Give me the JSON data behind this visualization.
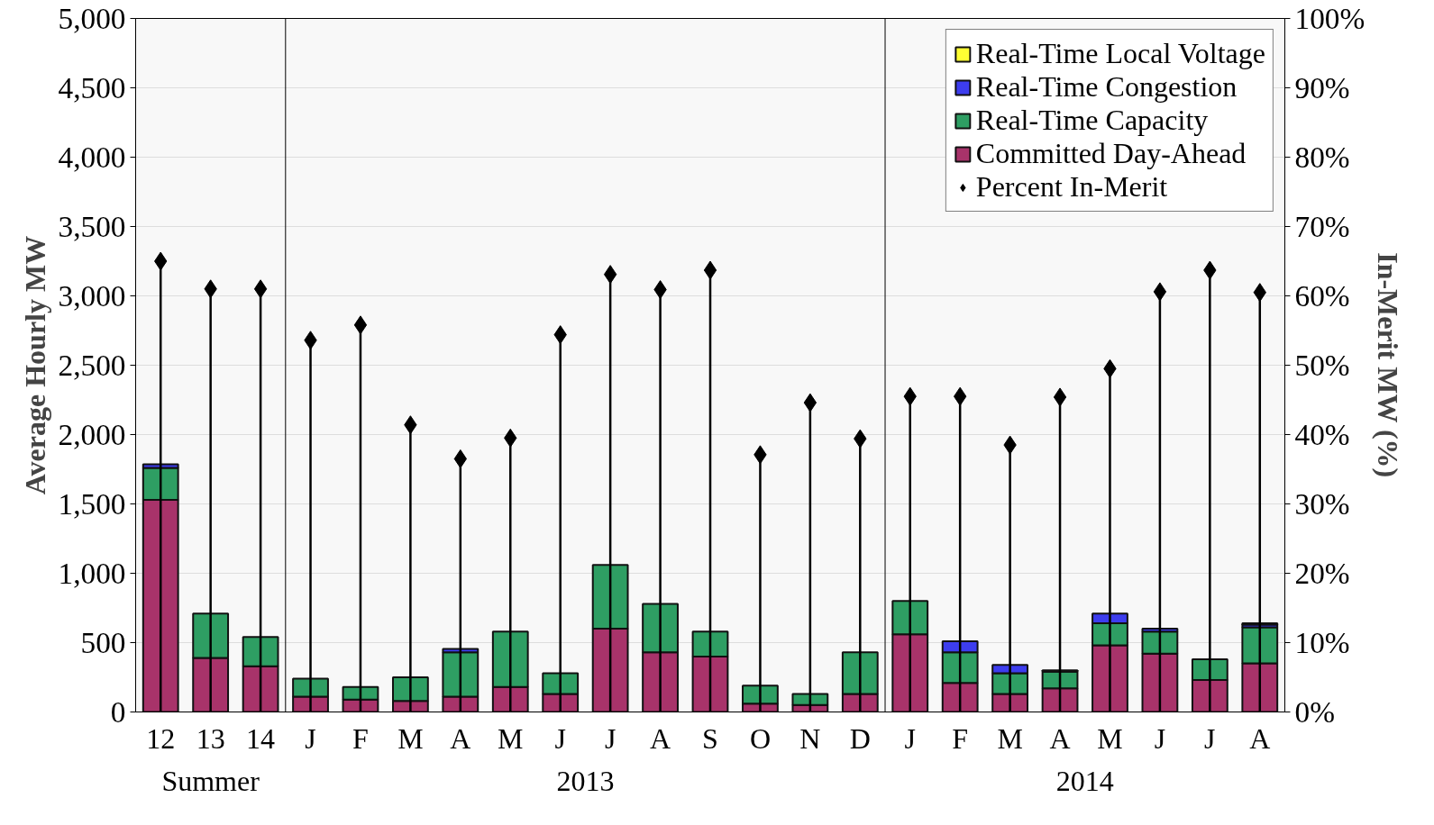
{
  "chart_data": {
    "type": "bar",
    "stacked": true,
    "categories": [
      "12",
      "13",
      "14",
      "J",
      "F",
      "M",
      "A",
      "M",
      "J",
      "J",
      "A",
      "S",
      "O",
      "N",
      "D",
      "J",
      "F",
      "M",
      "A",
      "M",
      "J",
      "J",
      "A"
    ],
    "annotations": [
      "Summer",
      "2013",
      "2014"
    ],
    "ylabel": "Average Hourly MW",
    "y2label": "In-Merit MW (%)",
    "ylim": [
      0,
      5000
    ],
    "yticks": [
      {
        "value": 0,
        "label": "0"
      },
      {
        "value": 500,
        "label": "500"
      },
      {
        "value": 1000,
        "label": "1,000"
      },
      {
        "value": 1500,
        "label": "1,500"
      },
      {
        "value": 2000,
        "label": "2,000"
      },
      {
        "value": 2500,
        "label": "2,500"
      },
      {
        "value": 3000,
        "label": "3,000"
      },
      {
        "value": 3500,
        "label": "3,500"
      },
      {
        "value": 4000,
        "label": "4,000"
      },
      {
        "value": 4500,
        "label": "4,500"
      },
      {
        "value": 5000,
        "label": "5,000"
      }
    ],
    "y2lim": [
      0,
      100
    ],
    "y2ticks": [
      {
        "value": 0,
        "label": "0%"
      },
      {
        "value": 10,
        "label": "10%"
      },
      {
        "value": 20,
        "label": "20%"
      },
      {
        "value": 30,
        "label": "30%"
      },
      {
        "value": 40,
        "label": "40%"
      },
      {
        "value": 50,
        "label": "50%"
      },
      {
        "value": 60,
        "label": "60%"
      },
      {
        "value": 70,
        "label": "70%"
      },
      {
        "value": 80,
        "label": "80%"
      },
      {
        "value": 90,
        "label": "90%"
      },
      {
        "value": 100,
        "label": "100%"
      }
    ],
    "grid": "y",
    "legend": "top right",
    "series": [
      {
        "name": "Committed Day-Ahead",
        "color": "#a8336a",
        "values": [
          1530,
          390,
          330,
          110,
          90,
          80,
          110,
          180,
          130,
          600,
          430,
          400,
          60,
          50,
          130,
          560,
          210,
          130,
          170,
          480,
          420,
          230,
          350
        ]
      },
      {
        "name": "Real-Time Capacity",
        "color": "#2e9e63",
        "values": [
          230,
          320,
          210,
          130,
          90,
          170,
          320,
          400,
          150,
          460,
          350,
          180,
          130,
          80,
          300,
          240,
          220,
          150,
          120,
          160,
          160,
          150,
          260
        ]
      },
      {
        "name": "Real-Time Congestion",
        "color": "#3d3dee",
        "values": [
          25,
          0,
          0,
          0,
          0,
          0,
          25,
          0,
          0,
          0,
          0,
          0,
          0,
          0,
          0,
          0,
          80,
          60,
          10,
          70,
          20,
          0,
          20
        ]
      },
      {
        "name": "Real-Time Local Voltage",
        "color": "#ffff33",
        "values": [
          0,
          0,
          0,
          0,
          0,
          0,
          0,
          0,
          0,
          0,
          0,
          0,
          0,
          0,
          0,
          0,
          0,
          0,
          0,
          0,
          0,
          0,
          10
        ]
      },
      {
        "name": "Percent In-Merit",
        "type": "lollipop",
        "axis": "y2",
        "color": "#000000",
        "marker": "diamond",
        "values": [
          65,
          61,
          61,
          53.6,
          55.8,
          41.4,
          36.5,
          39.5,
          54.4,
          63.1,
          60.9,
          63.7,
          37.1,
          44.6,
          39.4,
          45.5,
          45.5,
          38.5,
          45.4,
          49.5,
          60.6,
          63.7,
          60.5
        ]
      }
    ]
  }
}
